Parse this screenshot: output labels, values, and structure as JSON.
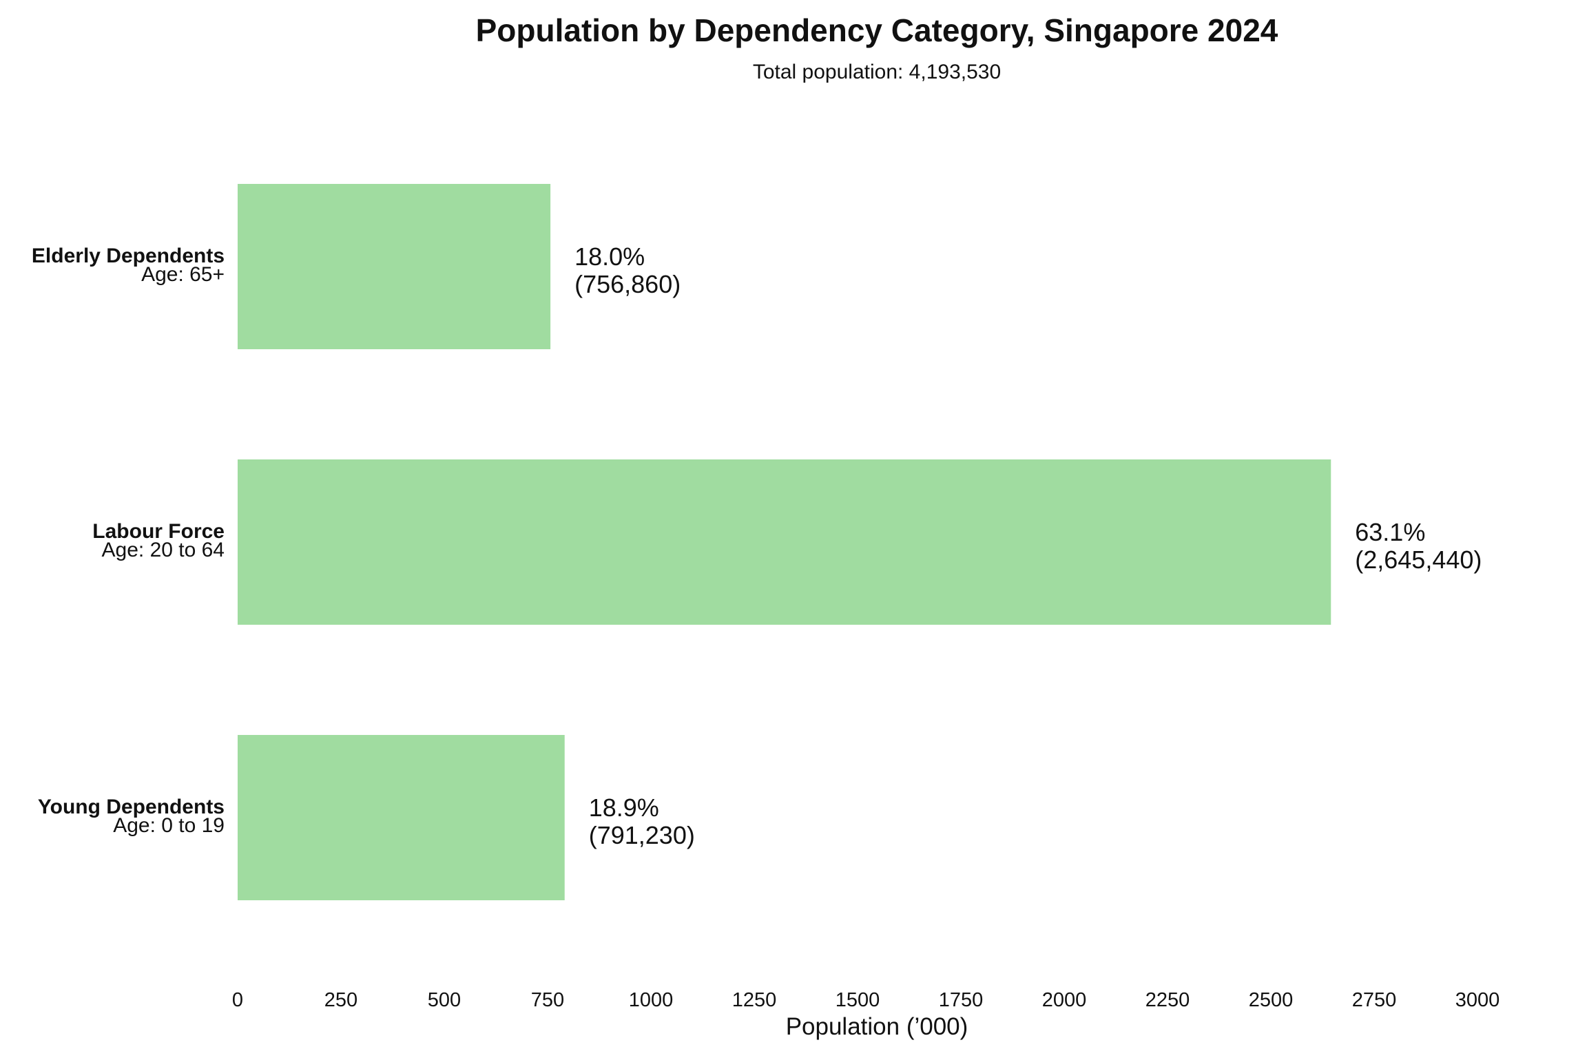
{
  "chart_data": {
    "type": "bar",
    "orientation": "horizontal",
    "title": "Population by Dependency Category, Singapore 2024",
    "subtitle": "Total population: 4,193,530",
    "xlabel": "Population (’000)",
    "ylabel": "",
    "xlim": [
      0,
      3000
    ],
    "xticks": [
      0,
      250,
      500,
      750,
      1000,
      1250,
      1500,
      1750,
      2000,
      2250,
      2500,
      2750,
      3000
    ],
    "grid": false,
    "legend": "none",
    "bar_color": "#a0dca0",
    "categories": [
      {
        "name": "Elderly Dependents",
        "age": "Age: 65+",
        "value": 756.86,
        "percent_label": "18.0%",
        "count_label": "(756,860)"
      },
      {
        "name": "Labour Force",
        "age": "Age: 20 to 64",
        "value": 2645.44,
        "percent_label": "63.1%",
        "count_label": "(2,645,440)"
      },
      {
        "name": "Young Dependents",
        "age": "Age: 0 to 19",
        "value": 791.23,
        "percent_label": "18.9%",
        "count_label": "(791,230)"
      }
    ]
  }
}
